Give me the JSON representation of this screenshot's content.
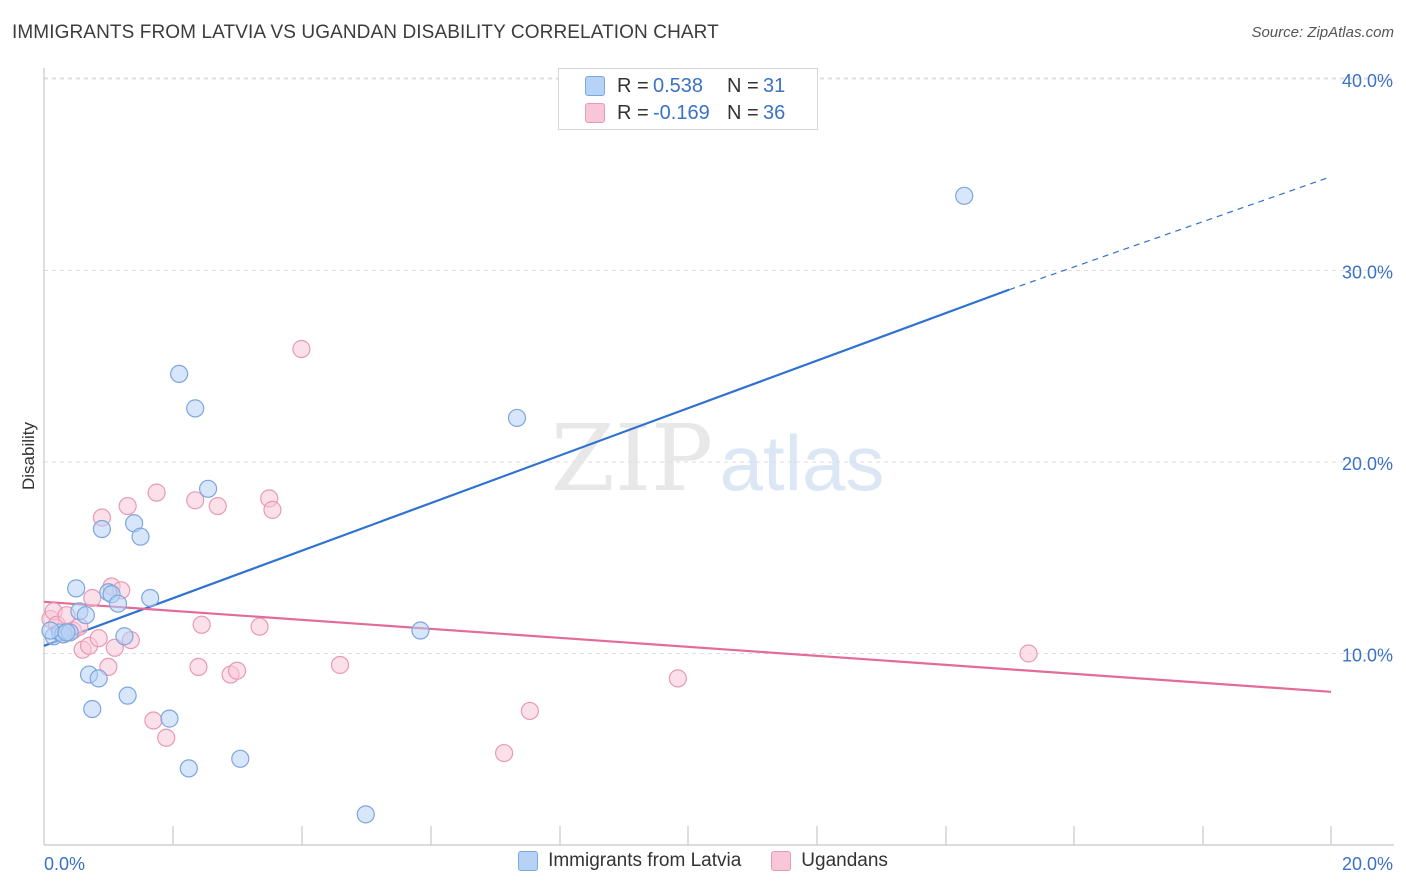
{
  "title": "IMMIGRANTS FROM LATVIA VS UGANDAN DISABILITY CORRELATION CHART",
  "source": "Source: ZipAtlas.com",
  "watermark": {
    "part1": "ZIP",
    "part2": "atlas"
  },
  "stats": {
    "latvia": {
      "r_label": "R =",
      "r_value": "0.538",
      "n_label": "N =",
      "n_value": "31"
    },
    "ugandans": {
      "r_label": "R =",
      "r_value": "-0.169",
      "n_label": "N =",
      "n_value": "36"
    }
  },
  "legend": {
    "latvia": "Immigrants from Latvia",
    "ugandans": "Ugandans"
  },
  "colors": {
    "latvia_fill": "#b6d2f6",
    "latvia_stroke": "#7ea6dc",
    "latvia_line": "#2f72cf",
    "ugandans_fill": "#f9c6d7",
    "ugandans_stroke": "#e79ab5",
    "ugandans_line": "#e36b98",
    "tick_label": "#3a72c4"
  },
  "chart_data": {
    "type": "scatter",
    "title": "IMMIGRANTS FROM LATVIA VS UGANDAN DISABILITY CORRELATION CHART",
    "xlabel": "",
    "ylabel": "Disability",
    "xlim": [
      0,
      20
    ],
    "ylim": [
      0,
      40
    ],
    "x_tick_labels": [
      "0.0%",
      "20.0%"
    ],
    "y_ticks": [
      10,
      20,
      30,
      40
    ],
    "y_tick_labels": [
      "10.0%",
      "20.0%",
      "30.0%",
      "40.0%"
    ],
    "grid": true,
    "legend_position": "bottom",
    "series": [
      {
        "name": "Immigrants from Latvia",
        "color": "latvia",
        "points": [
          [
            0.15,
            10.9
          ],
          [
            0.25,
            11.1
          ],
          [
            0.3,
            11.0
          ],
          [
            0.4,
            11.1
          ],
          [
            0.5,
            13.4
          ],
          [
            0.55,
            12.2
          ],
          [
            0.65,
            12.0
          ],
          [
            0.7,
            8.9
          ],
          [
            0.75,
            7.1
          ],
          [
            0.85,
            8.7
          ],
          [
            0.9,
            16.5
          ],
          [
            1.0,
            13.2
          ],
          [
            1.05,
            13.1
          ],
          [
            1.15,
            12.6
          ],
          [
            1.25,
            10.9
          ],
          [
            1.3,
            7.8
          ],
          [
            1.4,
            16.8
          ],
          [
            1.5,
            16.1
          ],
          [
            1.65,
            12.9
          ],
          [
            1.95,
            6.6
          ],
          [
            2.1,
            24.6
          ],
          [
            2.25,
            4.0
          ],
          [
            2.35,
            22.8
          ],
          [
            2.55,
            18.6
          ],
          [
            3.05,
            4.5
          ],
          [
            5.0,
            1.6
          ],
          [
            5.85,
            11.2
          ],
          [
            7.35,
            22.3
          ],
          [
            14.3,
            33.9
          ],
          [
            0.1,
            11.2
          ],
          [
            0.35,
            11.1
          ]
        ]
      },
      {
        "name": "Ugandans",
        "color": "ugandans",
        "points": [
          [
            0.1,
            11.8
          ],
          [
            0.15,
            12.2
          ],
          [
            0.2,
            11.5
          ],
          [
            0.3,
            11.0
          ],
          [
            0.35,
            12.0
          ],
          [
            0.45,
            11.2
          ],
          [
            0.55,
            11.4
          ],
          [
            0.6,
            10.2
          ],
          [
            0.7,
            10.4
          ],
          [
            0.75,
            12.9
          ],
          [
            0.85,
            10.8
          ],
          [
            0.9,
            17.1
          ],
          [
            1.0,
            9.3
          ],
          [
            1.05,
            13.5
          ],
          [
            1.1,
            10.3
          ],
          [
            1.2,
            13.3
          ],
          [
            1.3,
            17.7
          ],
          [
            1.35,
            10.7
          ],
          [
            1.7,
            6.5
          ],
          [
            1.75,
            18.4
          ],
          [
            1.9,
            5.6
          ],
          [
            2.35,
            18.0
          ],
          [
            2.4,
            9.3
          ],
          [
            2.45,
            11.5
          ],
          [
            2.7,
            17.7
          ],
          [
            2.9,
            8.9
          ],
          [
            3.0,
            9.1
          ],
          [
            3.35,
            11.4
          ],
          [
            3.5,
            18.1
          ],
          [
            3.55,
            17.5
          ],
          [
            4.0,
            25.9
          ],
          [
            4.6,
            9.4
          ],
          [
            7.15,
            4.8
          ],
          [
            7.55,
            7.0
          ],
          [
            9.85,
            8.7
          ],
          [
            15.3,
            10.0
          ]
        ]
      }
    ],
    "trend_lines": [
      {
        "series": "Immigrants from Latvia",
        "x_start": 0,
        "y_start": 10.4,
        "x_end": 15.0,
        "y_end": 29.0,
        "dashed_to_x": 20.0,
        "dashed_to_y": 34.9
      },
      {
        "series": "Ugandans",
        "x_start": 0,
        "y_start": 12.7,
        "x_end": 20.0,
        "y_end": 8.0
      }
    ]
  }
}
